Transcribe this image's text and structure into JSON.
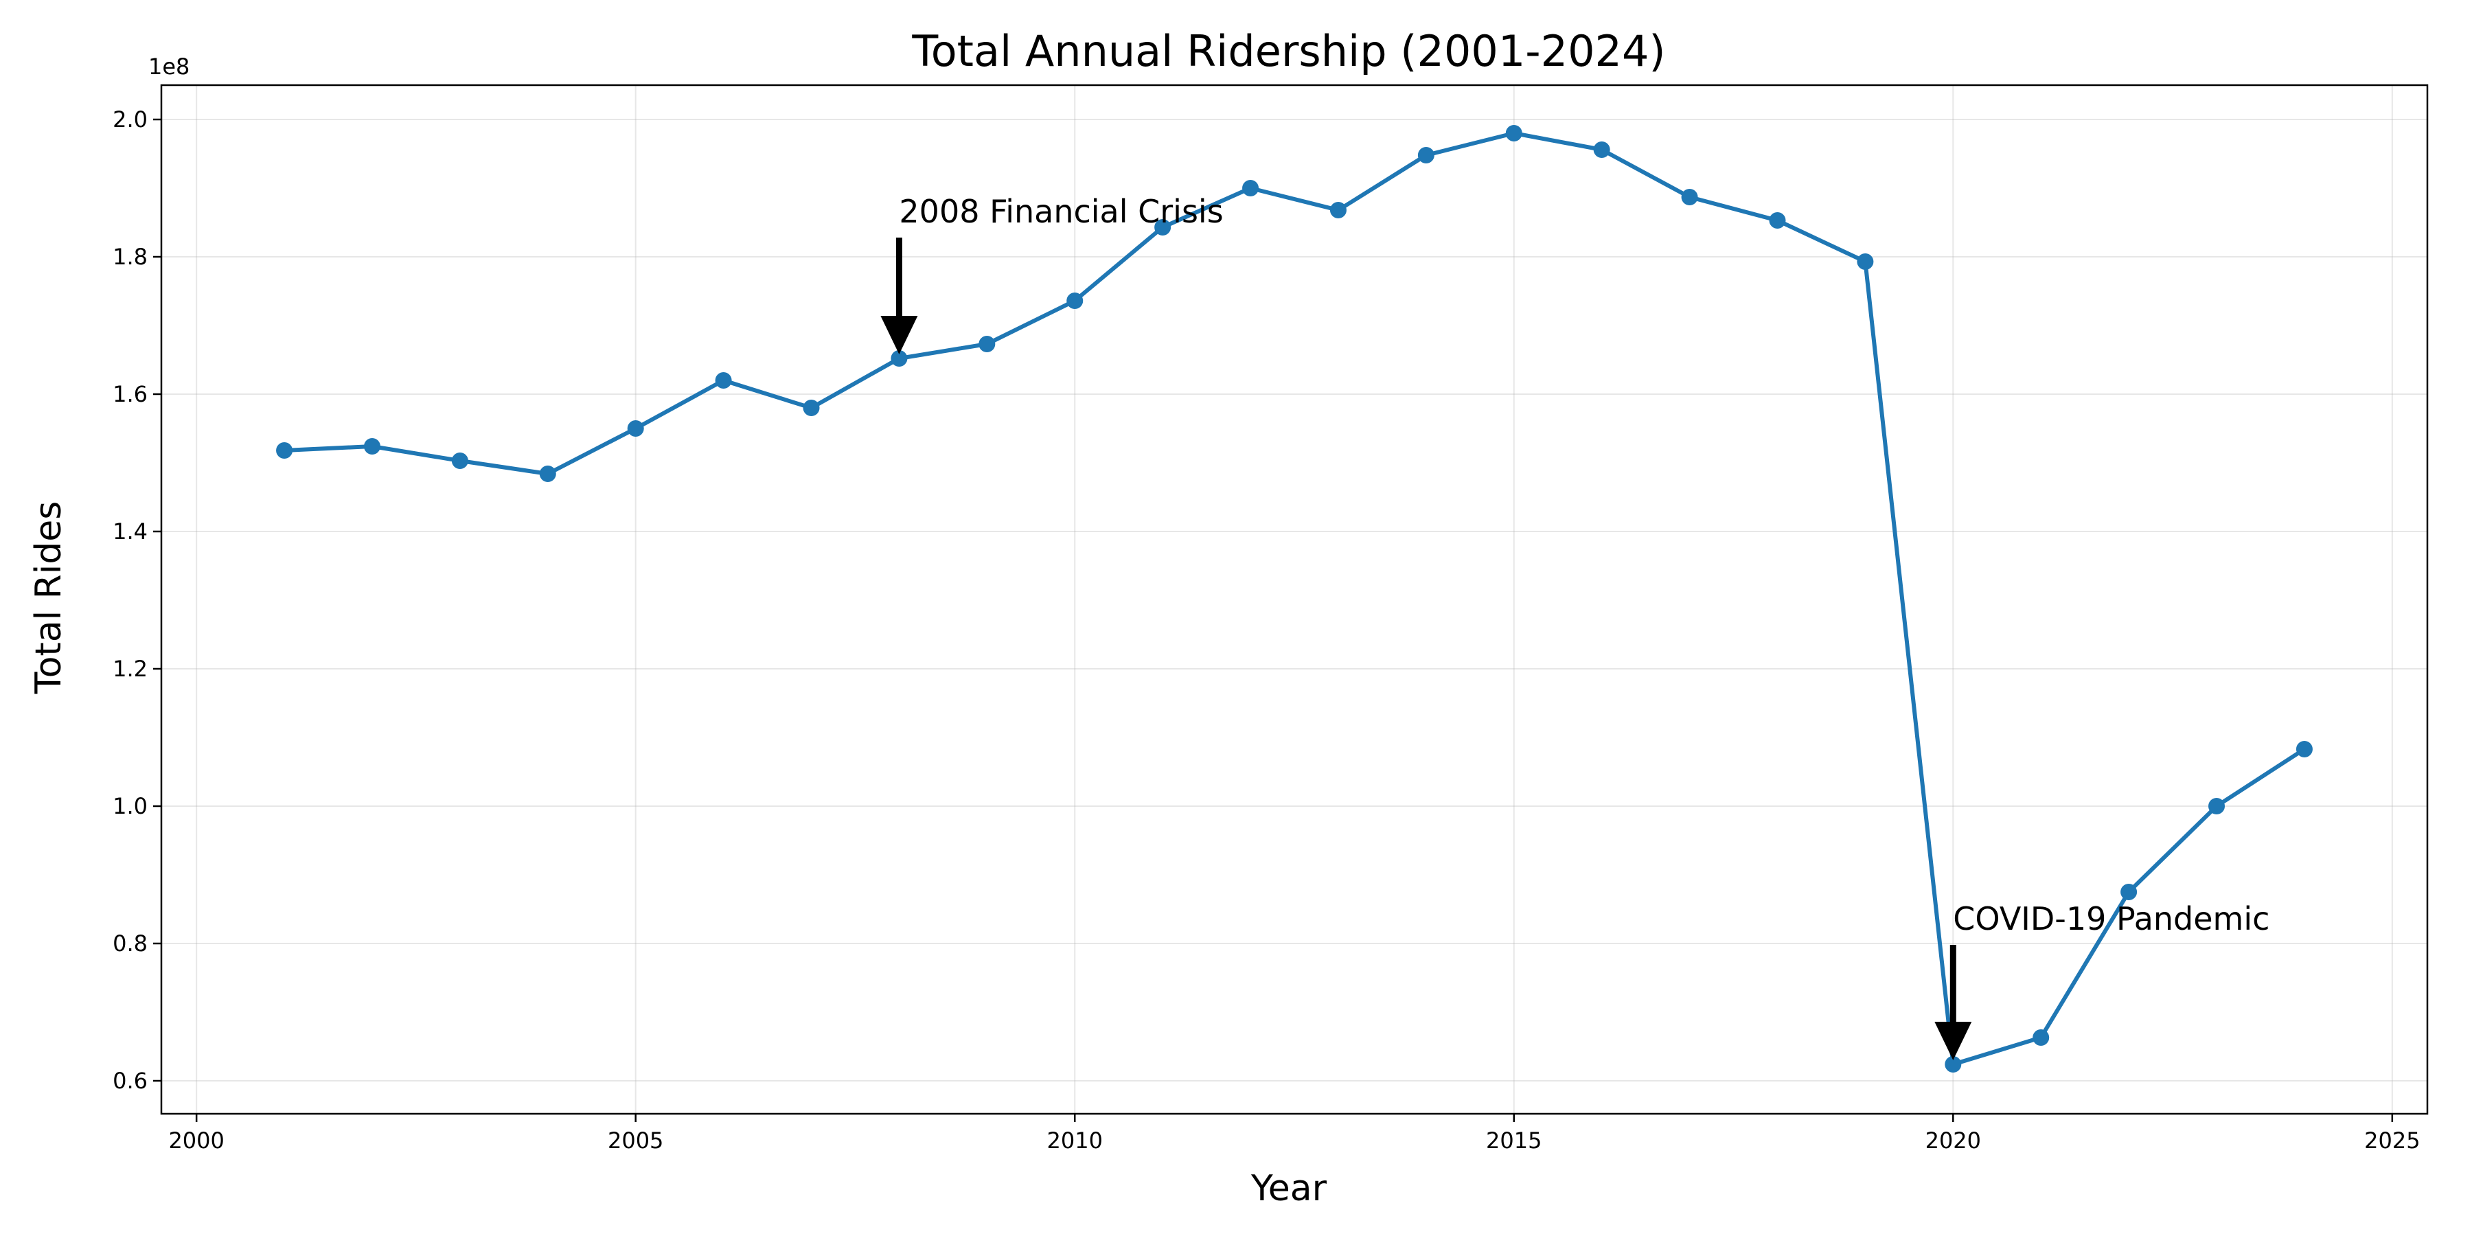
{
  "chart_data": {
    "type": "line",
    "title": "Total Annual Ridership (2001-2024)",
    "xlabel": "Year",
    "ylabel": "Total Rides",
    "y_scale_label": "1e8",
    "xlim": [
      1999.6,
      2025.4
    ],
    "ylim": [
      0.552,
      2.05
    ],
    "x_ticks": [
      2000,
      2005,
      2010,
      2015,
      2020,
      2025
    ],
    "y_ticks": [
      0.6,
      0.8,
      1.0,
      1.2,
      1.4,
      1.6,
      1.8,
      2.0
    ],
    "x_tick_labels": [
      "2000",
      "2005",
      "2010",
      "2015",
      "2020",
      "2025"
    ],
    "y_tick_labels": [
      "0.6",
      "0.8",
      "1.0",
      "1.2",
      "1.4",
      "1.6",
      "1.8",
      "2.0"
    ],
    "grid": true,
    "series": [
      {
        "color": "#1f77b4",
        "x": [
          2001,
          2002,
          2003,
          2004,
          2005,
          2006,
          2007,
          2008,
          2009,
          2010,
          2011,
          2012,
          2013,
          2014,
          2015,
          2016,
          2017,
          2018,
          2019,
          2020,
          2021,
          2022,
          2023,
          2024
        ],
        "y": [
          1.518,
          1.524,
          1.503,
          1.484,
          1.55,
          1.62,
          1.58,
          1.652,
          1.673,
          1.736,
          1.843,
          1.9,
          1.868,
          1.948,
          1.98,
          1.956,
          1.887,
          1.853,
          1.793,
          0.624,
          0.663,
          0.875,
          1.0,
          1.083
        ]
      }
    ],
    "annotations": [
      {
        "text": "2008 Financial Crisis",
        "x": 2008,
        "y": 1.652,
        "text_x": 2008,
        "text_y": 1.85
      },
      {
        "text": "COVID-19 Pandemic",
        "x": 2020,
        "y": 0.624,
        "text_x": 2020,
        "text_y": 0.82
      }
    ]
  }
}
